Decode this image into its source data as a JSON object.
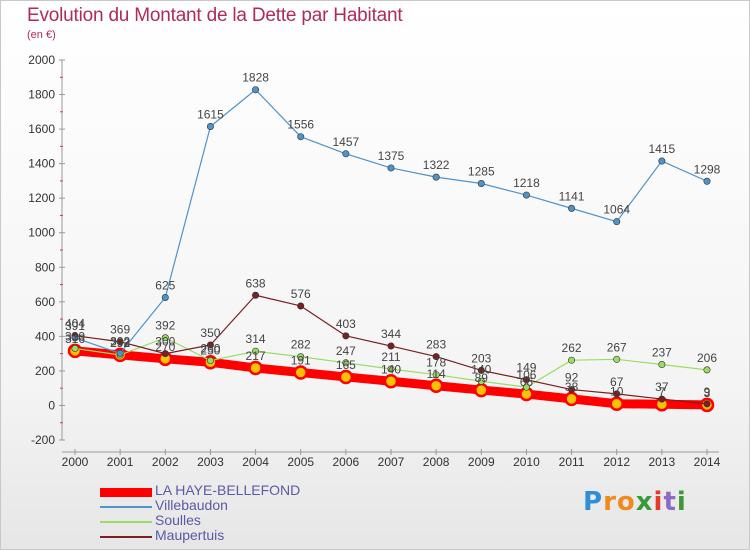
{
  "title": "Evolution du Montant de la Dette par Habitant",
  "subtitle": "(en €)",
  "logo": {
    "letters": [
      {
        "ch": "P",
        "color": "#2e8fd6"
      },
      {
        "ch": "r",
        "color": "#f08a1c"
      },
      {
        "ch": "o",
        "color": "#f08a1c"
      },
      {
        "ch": "x",
        "color": "#3a9a3a"
      },
      {
        "ch": "i",
        "color": "#e23b2e"
      },
      {
        "ch": "t",
        "color": "#8a6cc8"
      },
      {
        "ch": "i",
        "color": "#3a9a3a"
      }
    ]
  },
  "chart_data": {
    "type": "line",
    "x": [
      2000,
      2001,
      2002,
      2003,
      2004,
      2005,
      2006,
      2007,
      2008,
      2009,
      2010,
      2011,
      2012,
      2013,
      2014
    ],
    "ylim": [
      -200,
      2000
    ],
    "yticks": [
      -200,
      0,
      200,
      400,
      600,
      800,
      1000,
      1200,
      1400,
      1600,
      1800,
      2000
    ],
    "grid": false,
    "legend_position": "bottom-left",
    "series": [
      {
        "name": "LA HAYE-BELLEFOND",
        "color": "#ff0000",
        "values": [
          316,
          293,
          270,
          250,
          217,
          191,
          165,
          140,
          114,
          89,
          66,
          38,
          10,
          7,
          3
        ]
      },
      {
        "name": "Villebaudon",
        "color": "#4f93cb",
        "values": [
          391,
          302,
          625,
          1615,
          1828,
          1556,
          1457,
          1375,
          1322,
          1285,
          1218,
          1141,
          1064,
          1415,
          1298
        ]
      },
      {
        "name": "Soulles",
        "color": "#99dd66",
        "values": [
          330,
          292,
          392,
          260,
          314,
          282,
          247,
          211,
          178,
          140,
          106,
          262,
          267,
          237,
          206
        ]
      },
      {
        "name": "Maupertuis",
        "color": "#7a1f22",
        "values": [
          404,
          369,
          300,
          350,
          638,
          576,
          403,
          344,
          283,
          203,
          149,
          92,
          67,
          37,
          9
        ]
      }
    ]
  }
}
